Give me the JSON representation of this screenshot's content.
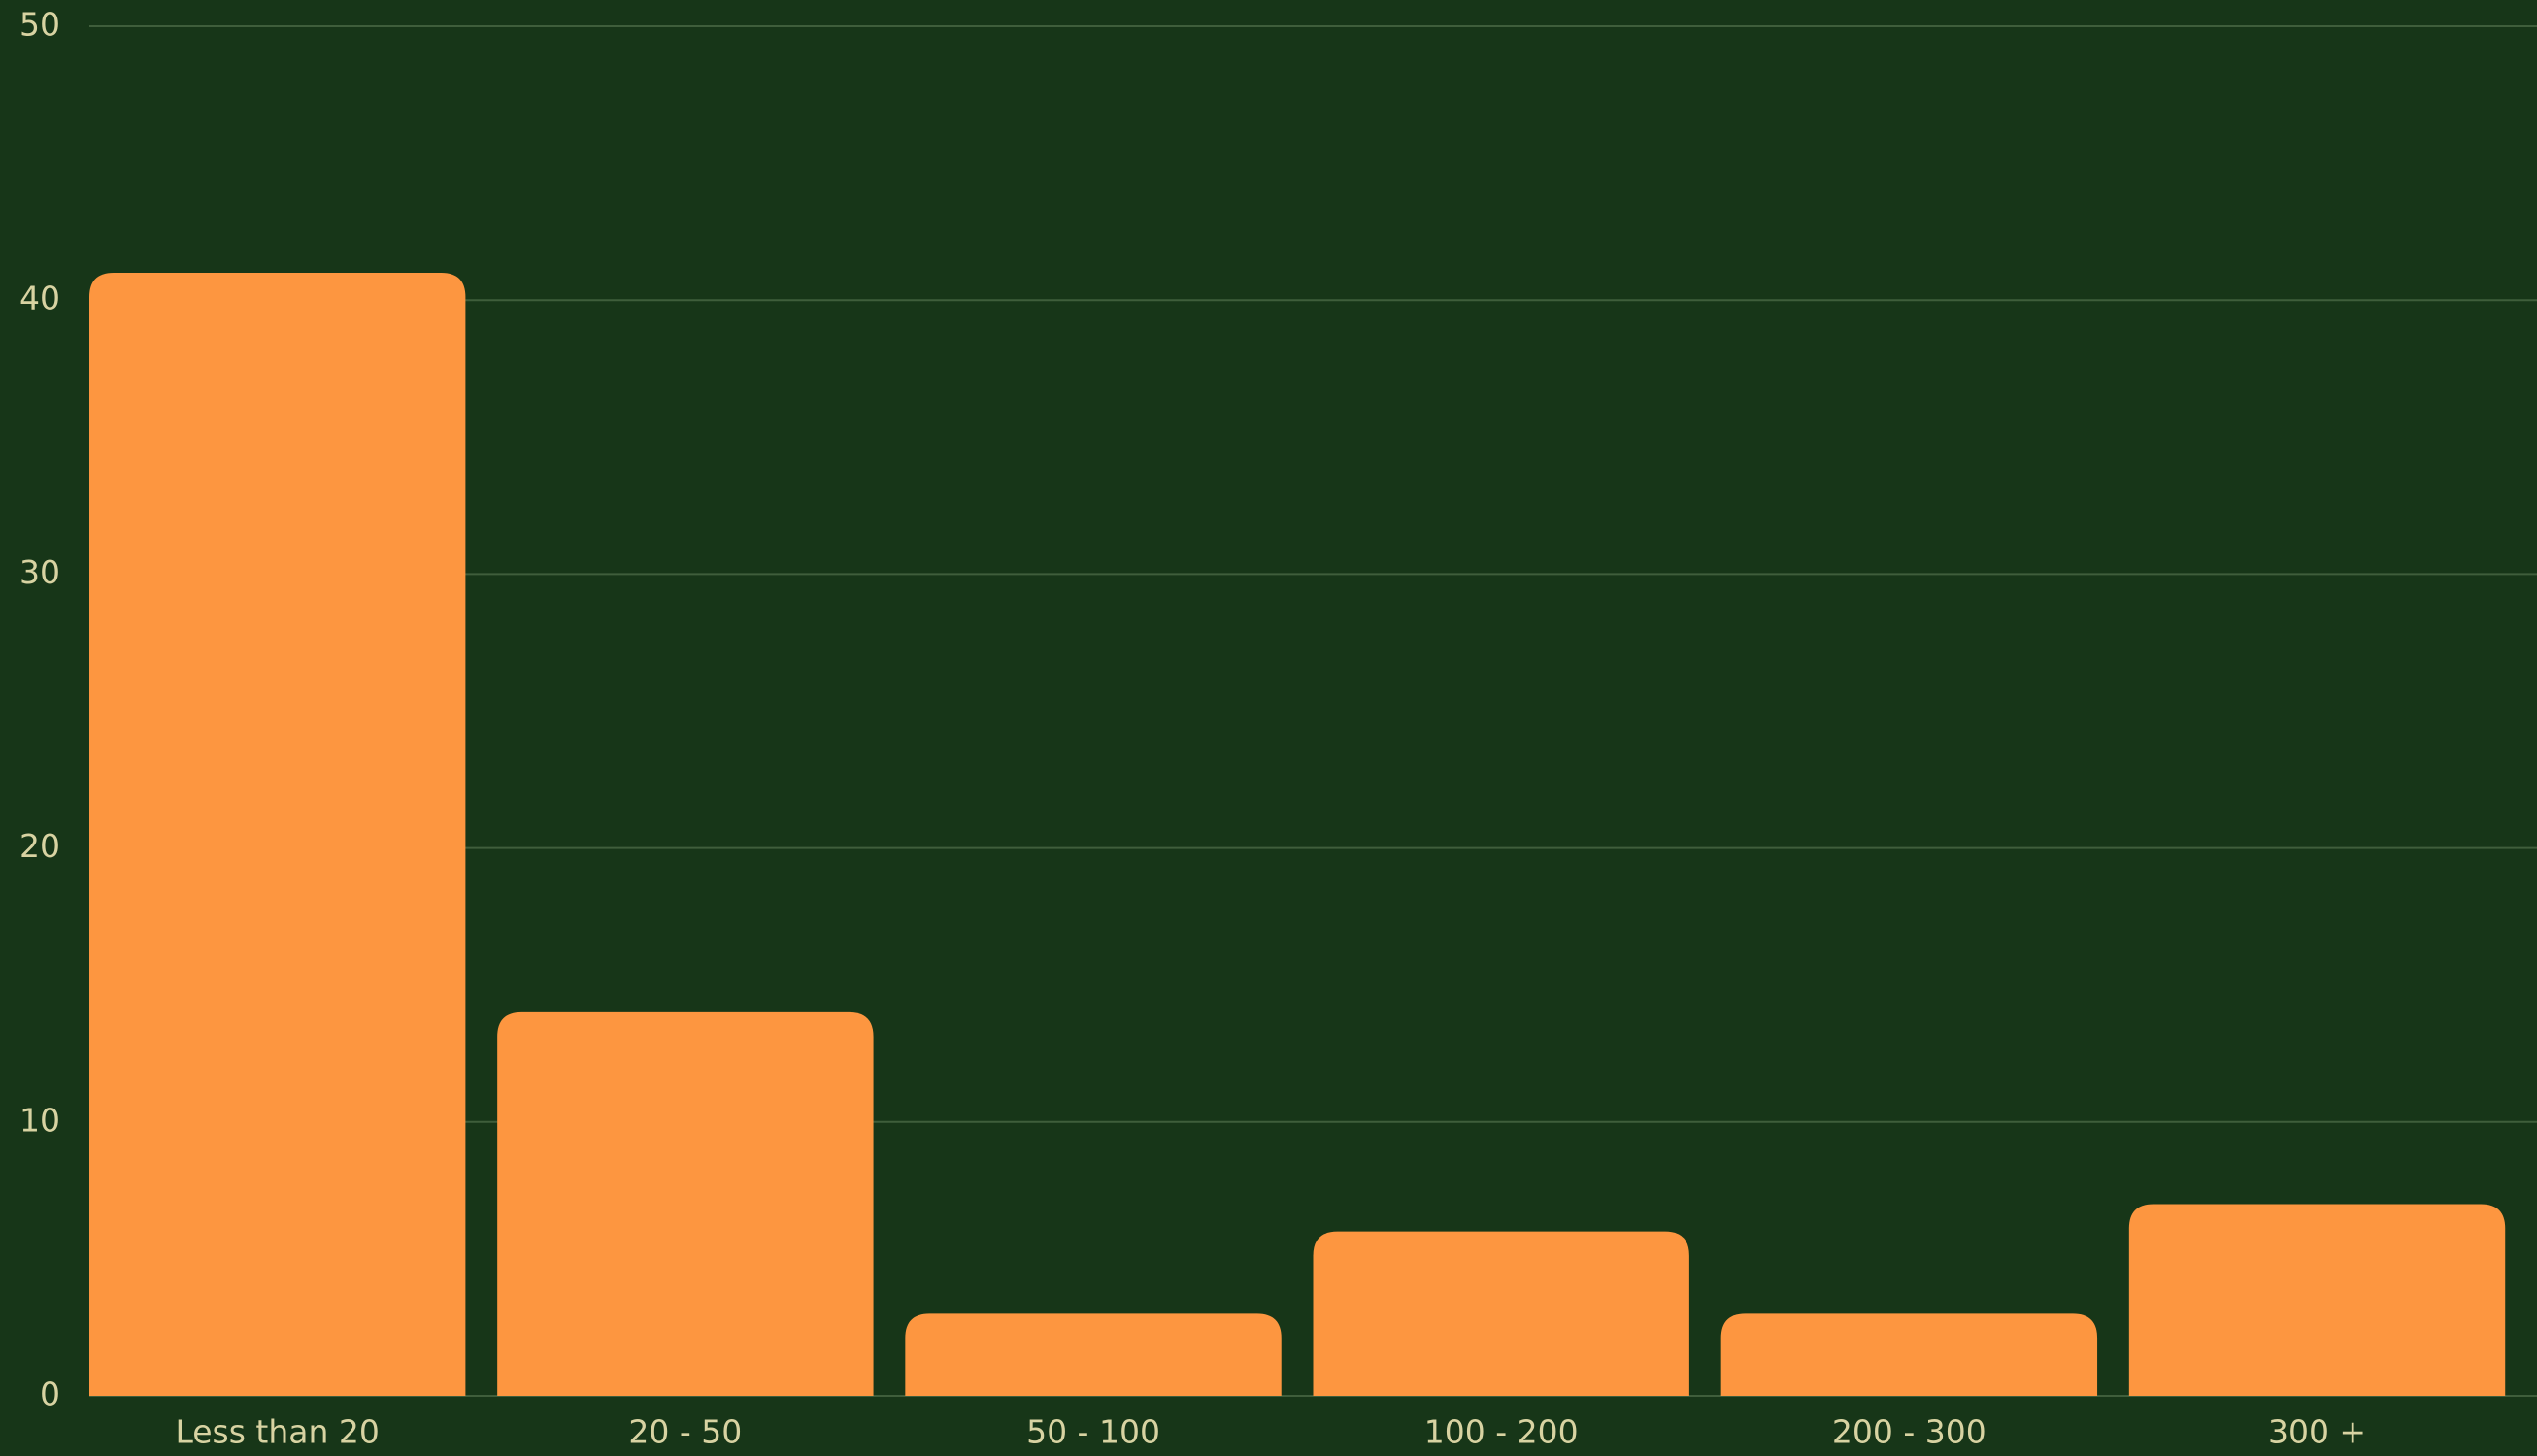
{
  "chart_data": {
    "type": "bar",
    "categories": [
      "Less than 20",
      "20 - 50",
      "50 - 100",
      "100 - 200",
      "200 - 300",
      "300 +"
    ],
    "values": [
      41,
      14,
      3,
      6,
      3,
      7
    ],
    "color": "#fd9640",
    "ylim": [
      0,
      50
    ],
    "yticks": [
      0,
      10,
      20,
      30,
      40,
      50
    ],
    "grid": true
  }
}
